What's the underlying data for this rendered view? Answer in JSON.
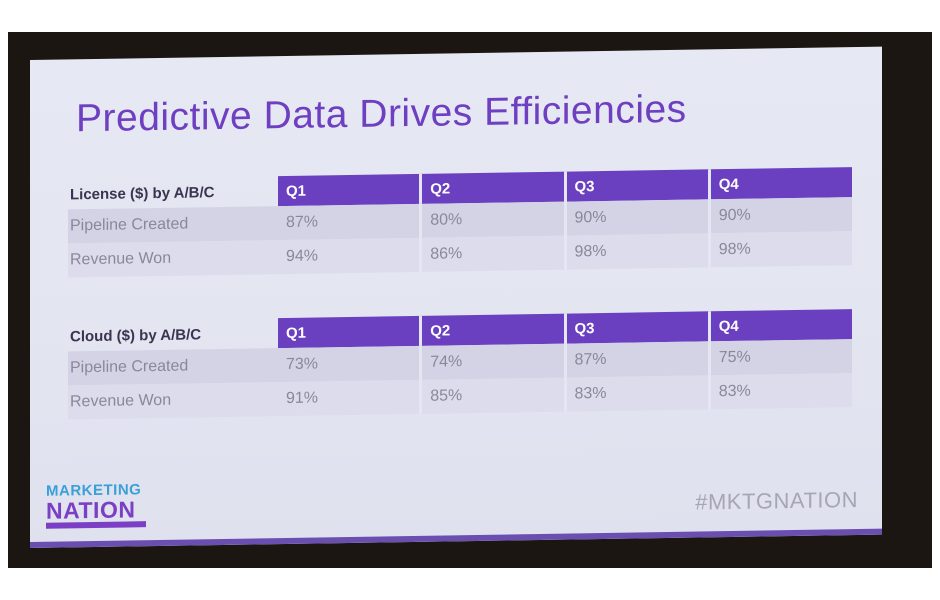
{
  "slide": {
    "title": "Predictive Data Drives Efficiencies",
    "hashtag": "#MKTGNATION",
    "logo": {
      "line1": "MARKETING",
      "line2": "NATION"
    }
  },
  "tables": [
    {
      "label": "License ($) by A/B/C",
      "columns": [
        "Q1",
        "Q2",
        "Q3",
        "Q4"
      ],
      "rows": [
        {
          "label": "Pipeline Created",
          "values": [
            "87%",
            "80%",
            "90%",
            "90%"
          ]
        },
        {
          "label": "Revenue Won",
          "values": [
            "94%",
            "86%",
            "98%",
            "98%"
          ]
        }
      ]
    },
    {
      "label": "Cloud ($) by A/B/C",
      "columns": [
        "Q1",
        "Q2",
        "Q3",
        "Q4"
      ],
      "rows": [
        {
          "label": "Pipeline Created",
          "values": [
            "73%",
            "74%",
            "87%",
            "75%"
          ]
        },
        {
          "label": "Revenue Won",
          "values": [
            "91%",
            "85%",
            "83%",
            "83%"
          ]
        }
      ]
    }
  ],
  "colors": {
    "title": "#6f3fc2",
    "header_fill": "#6a3fc0",
    "logo_blue": "#3aa0d8",
    "logo_purple": "#7a3fc4"
  }
}
